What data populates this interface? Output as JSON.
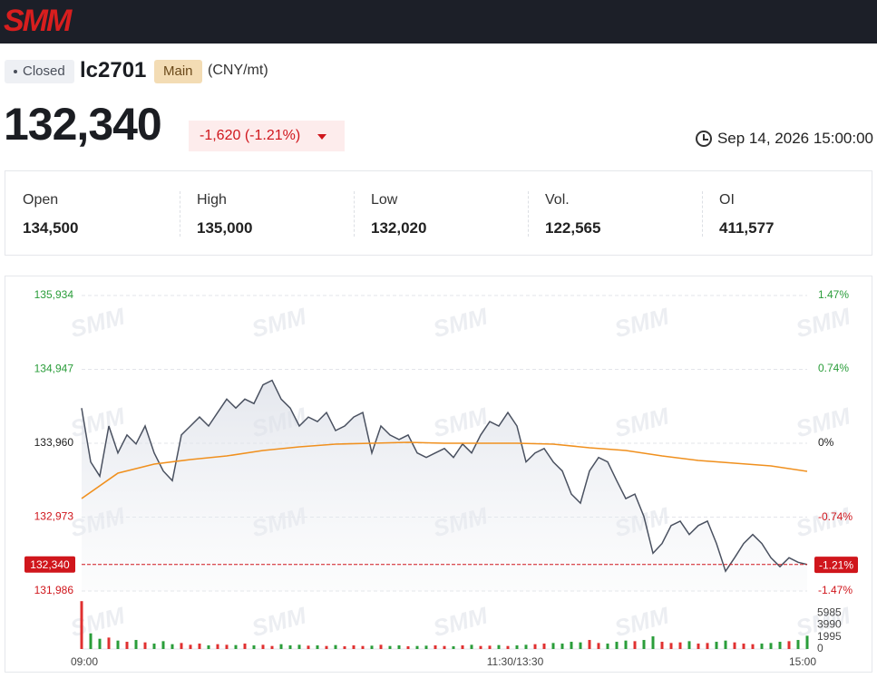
{
  "header": {
    "logo": "SMM",
    "status": "Closed",
    "symbol": "lc2701",
    "tag": "Main",
    "unit": "(CNY/mt)",
    "price": "132,340",
    "change": "-1,620 (-1.21%)",
    "timestamp": "Sep 14, 2026 15:00:00"
  },
  "stats": [
    {
      "label": "Open",
      "value": "134,500"
    },
    {
      "label": "High",
      "value": "135,000"
    },
    {
      "label": "Low",
      "value": "132,020"
    },
    {
      "label": "Vol.",
      "value": "122,565"
    },
    {
      "label": "OI",
      "value": "411,577"
    }
  ],
  "chart_data": {
    "type": "line",
    "xlim": [
      0,
      240
    ],
    "xticks": [
      {
        "value": 0,
        "label": "09:00"
      },
      {
        "value": 150,
        "label": "11:30/13:30"
      },
      {
        "value": 240,
        "label": "15:00"
      }
    ],
    "ylim": [
      131986,
      135934
    ],
    "yticks": [
      {
        "value": 135934,
        "label": "135,934"
      },
      {
        "value": 134947,
        "label": "134,947"
      },
      {
        "value": 133960,
        "label": "133,960"
      },
      {
        "value": 132973,
        "label": "132,973"
      },
      {
        "value": 131986,
        "label": "131,986"
      }
    ],
    "y2lim": [
      -1.47,
      1.47
    ],
    "y2ticks": [
      {
        "value": 1.47,
        "label": "1.47%"
      },
      {
        "value": 0.74,
        "label": "0.74%"
      },
      {
        "value": 0,
        "label": "0%"
      },
      {
        "value": -0.74,
        "label": "-0.74%"
      },
      {
        "value": -1.47,
        "label": "-1.47%"
      }
    ],
    "grid": true,
    "current_price": {
      "value": 132340,
      "label": "132,340"
    },
    "current_change": {
      "value": -1.21,
      "label": "-1.21%"
    },
    "series": [
      {
        "color": "#4a5160",
        "values": [
          134430,
          133710,
          133520,
          134190,
          133830,
          134070,
          133950,
          134190,
          133830,
          133590,
          133460,
          134070,
          134190,
          134310,
          134190,
          134370,
          134550,
          134430,
          134550,
          134490,
          134740,
          134800,
          134550,
          134430,
          134190,
          134310,
          134250,
          134370,
          134130,
          134190,
          134310,
          134370,
          133830,
          134190,
          134070,
          134010,
          134070,
          133830,
          133770,
          133830,
          133890,
          133770,
          133950,
          133830,
          134070,
          134250,
          134190,
          134370,
          134190,
          133710,
          133830,
          133890,
          133710,
          133590,
          133280,
          133160,
          133590,
          133770,
          133710,
          133460,
          133220,
          133280,
          132980,
          132490,
          132620,
          132860,
          132920,
          132740,
          132860,
          132920,
          132620,
          132250,
          132430,
          132620,
          132740,
          132620,
          132430,
          132310,
          132430,
          132370,
          132340
        ]
      },
      {
        "color": "#f0901e",
        "values": [
          133221,
          133560,
          133682,
          133742,
          133791,
          133863,
          133912,
          133948,
          133960,
          133972,
          133960,
          133960,
          133960,
          133948,
          133900,
          133863,
          133791,
          133730,
          133694,
          133657,
          133585
        ]
      }
    ],
    "volume": {
      "ylim": [
        0,
        7980
      ],
      "yticks": [
        0,
        1995,
        3990,
        5985
      ],
      "up_color": "#e03030",
      "down_color": "#2a9d3a",
      "values": [
        7950,
        2600,
        1700,
        1900,
        1400,
        1200,
        1500,
        1100,
        900,
        1300,
        800,
        1000,
        700,
        900,
        600,
        800,
        700,
        650,
        900,
        600,
        700,
        500,
        800,
        600,
        700,
        550,
        600,
        500,
        650,
        450,
        600,
        500,
        550,
        700,
        500,
        600,
        450,
        500,
        550,
        600,
        500,
        450,
        600,
        700,
        500,
        550,
        650,
        500,
        600,
        700,
        800,
        900,
        1000,
        900,
        1200,
        1100,
        1500,
        1000,
        900,
        1200,
        1400,
        1300,
        1500,
        2100,
        1200,
        1000,
        1100,
        1300,
        900,
        1000,
        1200,
        1400,
        1100,
        900,
        800,
        900,
        1000,
        1200,
        1300,
        1500,
        2200
      ]
    }
  }
}
